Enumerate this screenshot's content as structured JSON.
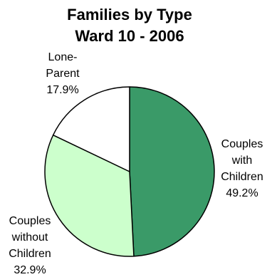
{
  "chart_data": {
    "type": "pie",
    "title": [
      "Families by Type",
      "Ward 10 - 2006"
    ],
    "slices": [
      {
        "label_lines": [
          "Couples",
          "with",
          "Children"
        ],
        "value_label": "49.2%",
        "value": 49.2,
        "color": "#3a9a68"
      },
      {
        "label_lines": [
          "Couples",
          "without",
          "Children"
        ],
        "value_label": "32.9%",
        "value": 32.9,
        "color": "#ccffcc"
      },
      {
        "label_lines": [
          "Lone-",
          "Parent"
        ],
        "value_label": "17.9%",
        "value": 17.9,
        "color": "#ffffff"
      }
    ],
    "start_angle_deg": 0,
    "direction": "clockwise"
  }
}
